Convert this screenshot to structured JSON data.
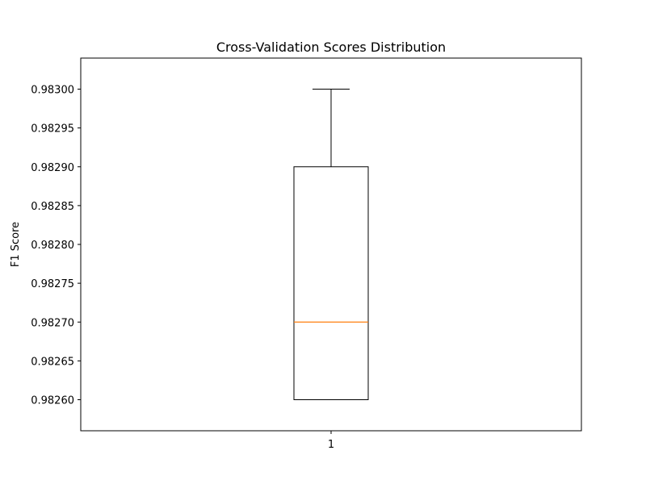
{
  "chart_data": {
    "type": "box",
    "title": "Cross-Validation Scores Distribution",
    "xlabel": "",
    "ylabel": "F1 Score",
    "categories": [
      "1"
    ],
    "boxes": [
      {
        "category": "1",
        "min": 0.9826,
        "q1": 0.9826,
        "median": 0.9827,
        "q3": 0.9829,
        "max": 0.983
      }
    ],
    "ylim": [
      0.98256,
      0.98304
    ],
    "yticks": [
      {
        "value": 0.9826,
        "label": "0.98260"
      },
      {
        "value": 0.98265,
        "label": "0.98265"
      },
      {
        "value": 0.9827,
        "label": "0.98270"
      },
      {
        "value": 0.98275,
        "label": "0.98275"
      },
      {
        "value": 0.9828,
        "label": "0.98280"
      },
      {
        "value": 0.98285,
        "label": "0.98285"
      },
      {
        "value": 0.9829,
        "label": "0.98290"
      },
      {
        "value": 0.98295,
        "label": "0.98295"
      },
      {
        "value": 0.983,
        "label": "0.98300"
      }
    ],
    "grid": false,
    "colors": {
      "box": "#000000",
      "median": "#ff7f0e",
      "whisker": "#000000",
      "axes": "#000000"
    }
  }
}
